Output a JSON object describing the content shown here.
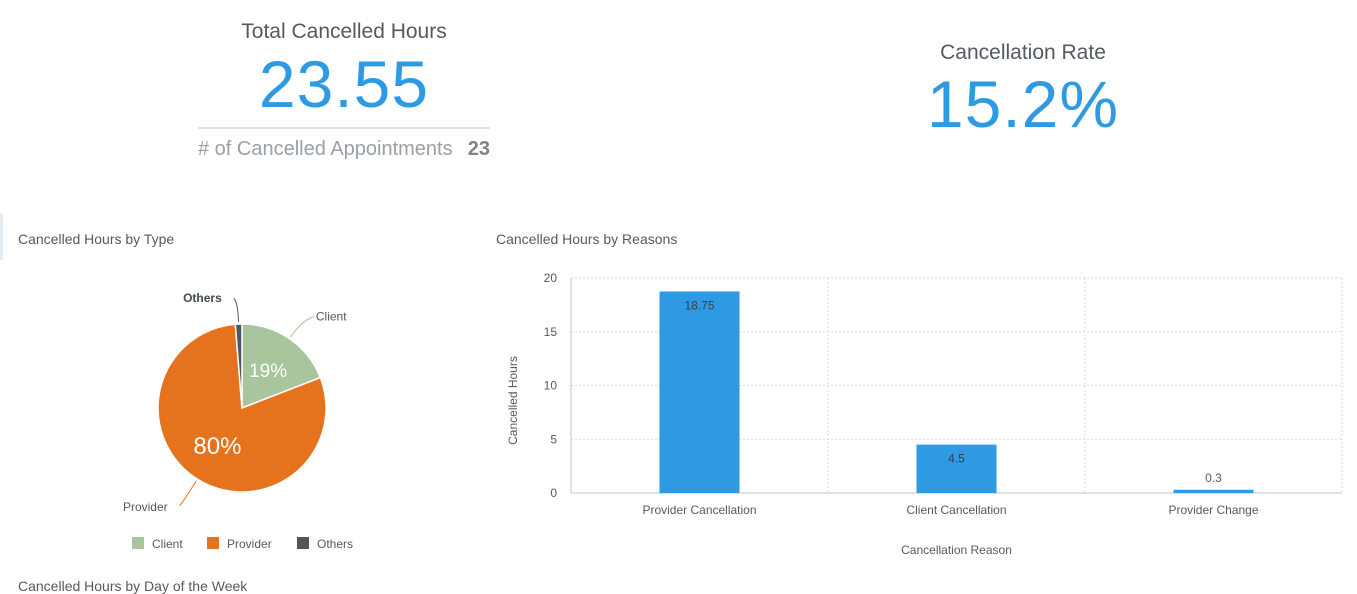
{
  "kpis": {
    "total_hours": {
      "title": "Total Cancelled Hours",
      "value": "23.55",
      "sub_label": "# of Cancelled Appointments",
      "sub_value": "23"
    },
    "rate": {
      "title": "Cancellation Rate",
      "value": "15.2%"
    }
  },
  "footer": {
    "next_chart_title": "Cancelled Hours by Day of the Week"
  },
  "colors": {
    "accent": "#2e9ae3",
    "client": "#a9c59e",
    "provider": "#e5731d",
    "others": "#515761"
  },
  "chart_data": [
    {
      "type": "pie",
      "title": "Cancelled Hours by Type",
      "labels": [
        "Client",
        "Provider",
        "Others"
      ],
      "values": [
        4.5,
        18.75,
        0.3
      ],
      "percent_labels": [
        "19%",
        "80%",
        ""
      ],
      "legend": [
        "Client",
        "Provider",
        "Others"
      ],
      "legend_position": "bottom"
    },
    {
      "type": "bar",
      "title": "Cancelled Hours by Reasons",
      "categories": [
        "Provider Cancellation",
        "Client Cancellation",
        "Provider Change"
      ],
      "values": [
        18.75,
        4.5,
        0.3
      ],
      "data_labels": [
        "18.75",
        "4.5",
        "0.3"
      ],
      "xlabel": "Cancellation Reason",
      "ylabel": "Cancelled Hours",
      "ylim": [
        0,
        20
      ],
      "yticks": [
        0,
        5,
        10,
        15,
        20
      ],
      "grid": true
    }
  ]
}
